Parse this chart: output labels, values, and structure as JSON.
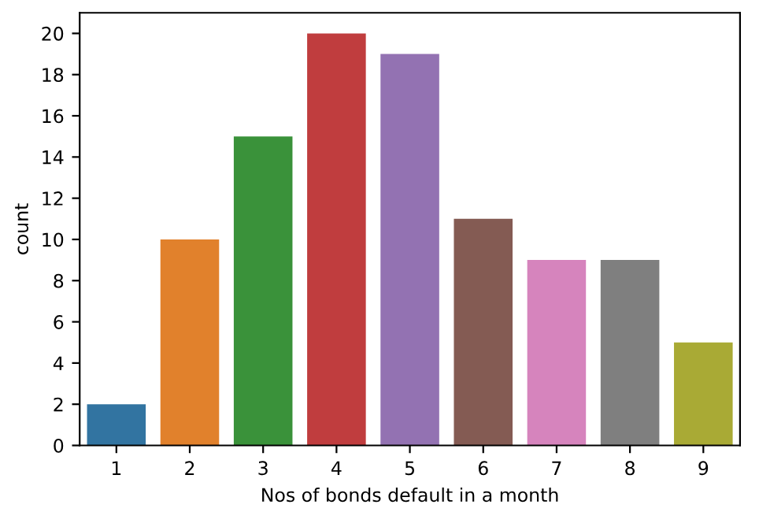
{
  "chart_data": {
    "type": "bar",
    "xlabel": "Nos of bonds default in a month",
    "ylabel": "count",
    "categories": [
      "1",
      "2",
      "3",
      "4",
      "5",
      "6",
      "7",
      "8",
      "9"
    ],
    "values": [
      2,
      10,
      15,
      20,
      19,
      11,
      9,
      9,
      5
    ],
    "colors": [
      "#3274a1",
      "#e1812c",
      "#3a923a",
      "#c03d3e",
      "#9372b2",
      "#845b53",
      "#d684bd",
      "#7f7f7f",
      "#a9aa35"
    ],
    "ylim": [
      0,
      21
    ],
    "yticks": [
      0,
      2,
      4,
      6,
      8,
      10,
      12,
      14,
      16,
      18,
      20
    ],
    "grid": false,
    "legend": false
  }
}
